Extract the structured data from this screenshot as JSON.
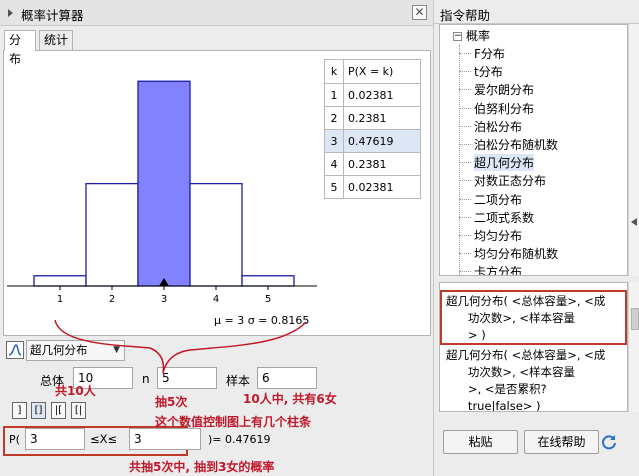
{
  "calculator": {
    "title": "概率计算器",
    "close_glyph": "✕",
    "tabs": [
      "分布",
      "统计"
    ],
    "distribution": "超几何分布",
    "params": {
      "total_label": "总体",
      "total_value": "10",
      "n_label": "n",
      "n_value": "5",
      "sample_label": "样本",
      "sample_value": "6"
    },
    "mode_buttons": [
      "]",
      "[]",
      "|[",
      "[|"
    ],
    "prob": {
      "p_label": "P(",
      "lower": "3",
      "relation": "≤X≤",
      "upper": "3",
      "result": ")= 0.47619"
    },
    "stats_line": "μ = 3   σ = 0.8165"
  },
  "table": {
    "headers": [
      "k",
      "P(X = k)"
    ],
    "rows": [
      {
        "k": "1",
        "p": "0.02381"
      },
      {
        "k": "2",
        "p": "0.2381"
      },
      {
        "k": "3",
        "p": "0.47619"
      },
      {
        "k": "4",
        "p": "0.2381"
      },
      {
        "k": "5",
        "p": "0.02381"
      }
    ],
    "selected_row": "3"
  },
  "chart_data": {
    "type": "bar",
    "categories": [
      "1",
      "2",
      "3",
      "4",
      "5"
    ],
    "values": [
      0.02381,
      0.2381,
      0.47619,
      0.2381,
      0.02381
    ],
    "highlight": [
      "3"
    ],
    "colors": {
      "bar": "#ffffff",
      "highlight": "#8282ff",
      "outline": "#1e1ea8"
    },
    "xlabel": "",
    "ylabel": "",
    "ylim": [
      0,
      0.5
    ],
    "grid": false
  },
  "annotations": {
    "total_people": "共10人",
    "draw_count": "抽5次",
    "bars_note": "这个数值控制图上有几个柱条",
    "women_note": "10人中, 共有6女",
    "prob_note": "共抽5次中, 抽到3女的概率"
  },
  "help": {
    "title": "指令帮助",
    "category": "概率",
    "items": [
      "F分布",
      "t分布",
      "爱尔朗分布",
      "伯努利分布",
      "泊松分布",
      "泊松分布随机数",
      "超几何分布",
      "对数正态分布",
      "二项分布",
      "二项式系数",
      "均匀分布",
      "均匀分布随机数",
      "卡方分布"
    ],
    "selected_item": "超几何分布",
    "syntax_1": [
      "超几何分布( <总体容量>, <成",
      "      功次数>, <样本容量",
      "      > )"
    ],
    "syntax_2": [
      "超几何分布( <总体容量>, <成",
      "      功次数>, <样本容量",
      "      >, <是否累积?",
      "      true|false> )"
    ],
    "paste_label": "粘贴",
    "online_help_label": "在线帮助"
  }
}
